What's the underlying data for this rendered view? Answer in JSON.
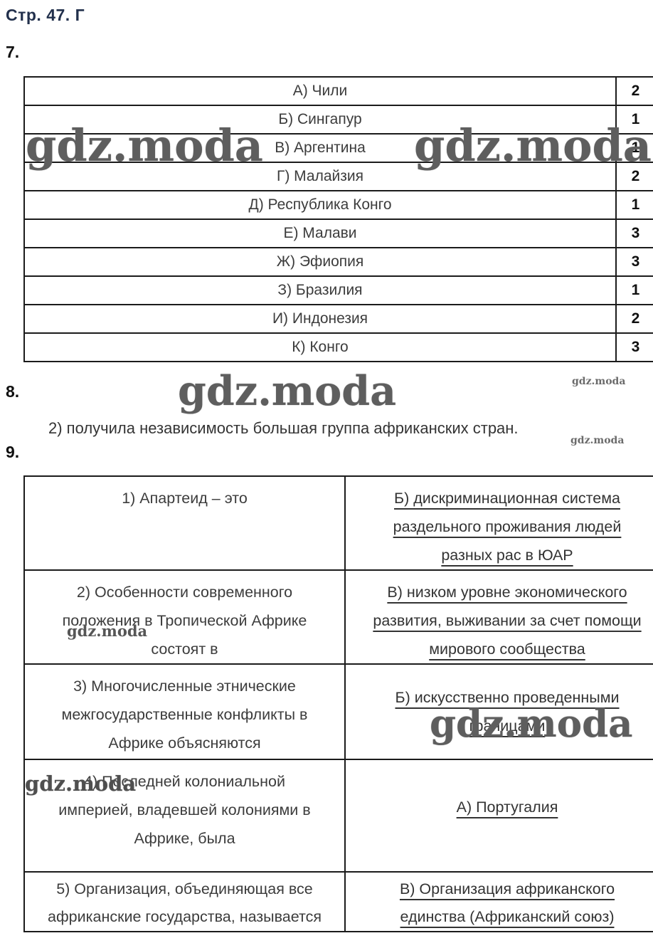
{
  "page": {
    "title": "Стр. 47. Г"
  },
  "watermark": {
    "text": "gdz.moda"
  },
  "sections": {
    "q7": {
      "number": "7."
    },
    "q8": {
      "number": "8.",
      "text": "2) получила независимость большая группа африканских стран."
    },
    "q9": {
      "number": "9."
    }
  },
  "table7": {
    "rows": [
      {
        "label": "А) Чили",
        "value": "2"
      },
      {
        "label": "Б) Сингапур",
        "value": "1"
      },
      {
        "label": "В) Аргентина",
        "value": "1"
      },
      {
        "label": "Г) Малайзия",
        "value": "2"
      },
      {
        "label": "Д) Республика Конго",
        "value": "1"
      },
      {
        "label": "Е) Малави",
        "value": "3"
      },
      {
        "label": "Ж) Эфиопия",
        "value": "3"
      },
      {
        "label": "З) Бразилия",
        "value": "1"
      },
      {
        "label": "И) Индонезия",
        "value": "2"
      },
      {
        "label": "К) Конго",
        "value": "3"
      }
    ]
  },
  "table9": {
    "rows": [
      {
        "left": [
          "1) Апартеид – это"
        ],
        "right": [
          "Б) дискриминационная система",
          "раздельного проживания людей",
          "разных рас в ЮАР"
        ]
      },
      {
        "left": [
          "2) Особенности современного",
          "положения в Тропической Африке",
          "состоят в"
        ],
        "right": [
          "В) низком уровне экономического",
          "развития, выживании за счет помощи",
          "мирового сообщества"
        ]
      },
      {
        "left": [
          "3) Многочисленные этнические",
          "межгосударственные конфликты в",
          "Африке объясняются"
        ],
        "right": [
          "Б) искусственно проведенными",
          "границами"
        ]
      },
      {
        "left": [
          "4) Последней колониальной",
          "империей, владевшей колониями в",
          "Африке, была"
        ],
        "right": [
          "А) Португалия"
        ]
      },
      {
        "left": [
          "5) Организация, объединяющая все",
          "африканские государства, называется"
        ],
        "right": [
          "В) Организация африканского",
          "единства (Африканский союз)"
        ]
      }
    ]
  }
}
